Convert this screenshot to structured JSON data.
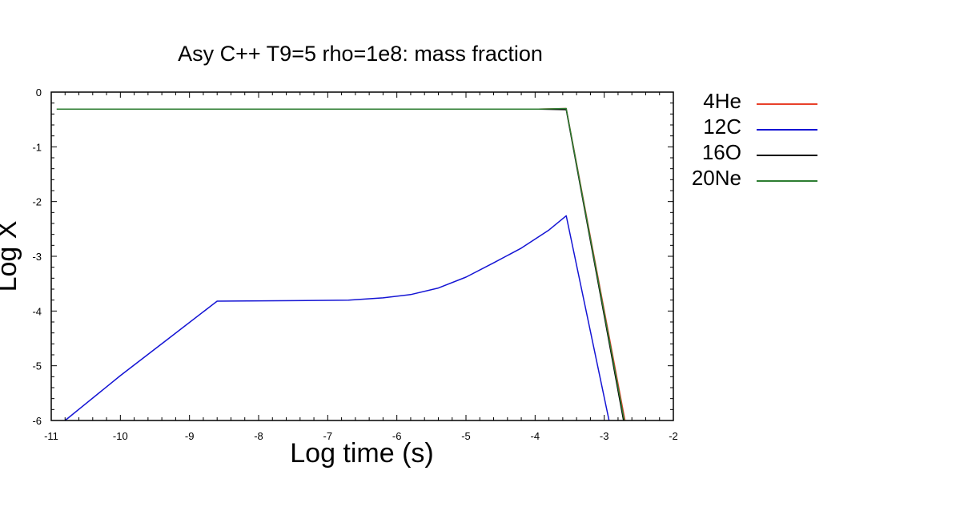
{
  "chart_data": {
    "type": "line",
    "title": "Asy C++ T9=5 rho=1e8: mass fraction",
    "xlabel": "Log time (s)",
    "ylabel": "Log X",
    "xlim": [
      -11,
      -2
    ],
    "ylim": [
      -6,
      0
    ],
    "xticks": [
      "-11",
      "-10",
      "-9",
      "-8",
      "-7",
      "-6",
      "-5",
      "-4",
      "-3",
      "-2"
    ],
    "yticks": [
      "0",
      "-1",
      "-2",
      "-3",
      "-4",
      "-5",
      "-6"
    ],
    "grid": false,
    "legend_position": "right",
    "series": [
      {
        "name": "4He",
        "color": "#e8402a",
        "x": [
          -10.92,
          -3.95,
          -3.55,
          -2.7
        ],
        "y": [
          -0.31,
          -0.31,
          -0.3,
          -6.0
        ]
      },
      {
        "name": "12C",
        "color": "#1414d4",
        "x": [
          -10.8,
          -10.0,
          -9.3,
          -8.6,
          -7.5,
          -6.7,
          -6.2,
          -5.8,
          -5.4,
          -5.0,
          -4.6,
          -4.2,
          -3.8,
          -3.55,
          -2.93
        ],
        "y": [
          -6.0,
          -5.18,
          -4.5,
          -3.82,
          -3.81,
          -3.8,
          -3.76,
          -3.7,
          -3.58,
          -3.38,
          -3.12,
          -2.85,
          -2.52,
          -2.26,
          -6.0
        ]
      },
      {
        "name": "16O",
        "color": "#000000",
        "x": [
          -10.92,
          -3.95,
          -3.55,
          -2.72
        ],
        "y": [
          -0.31,
          -0.31,
          -0.32,
          -6.0
        ]
      },
      {
        "name": "20Ne",
        "color": "#2e7d32",
        "x": [
          -10.92,
          -3.95,
          -3.55,
          -2.71
        ],
        "y": [
          -0.31,
          -0.31,
          -0.3,
          -6.0
        ]
      }
    ]
  }
}
